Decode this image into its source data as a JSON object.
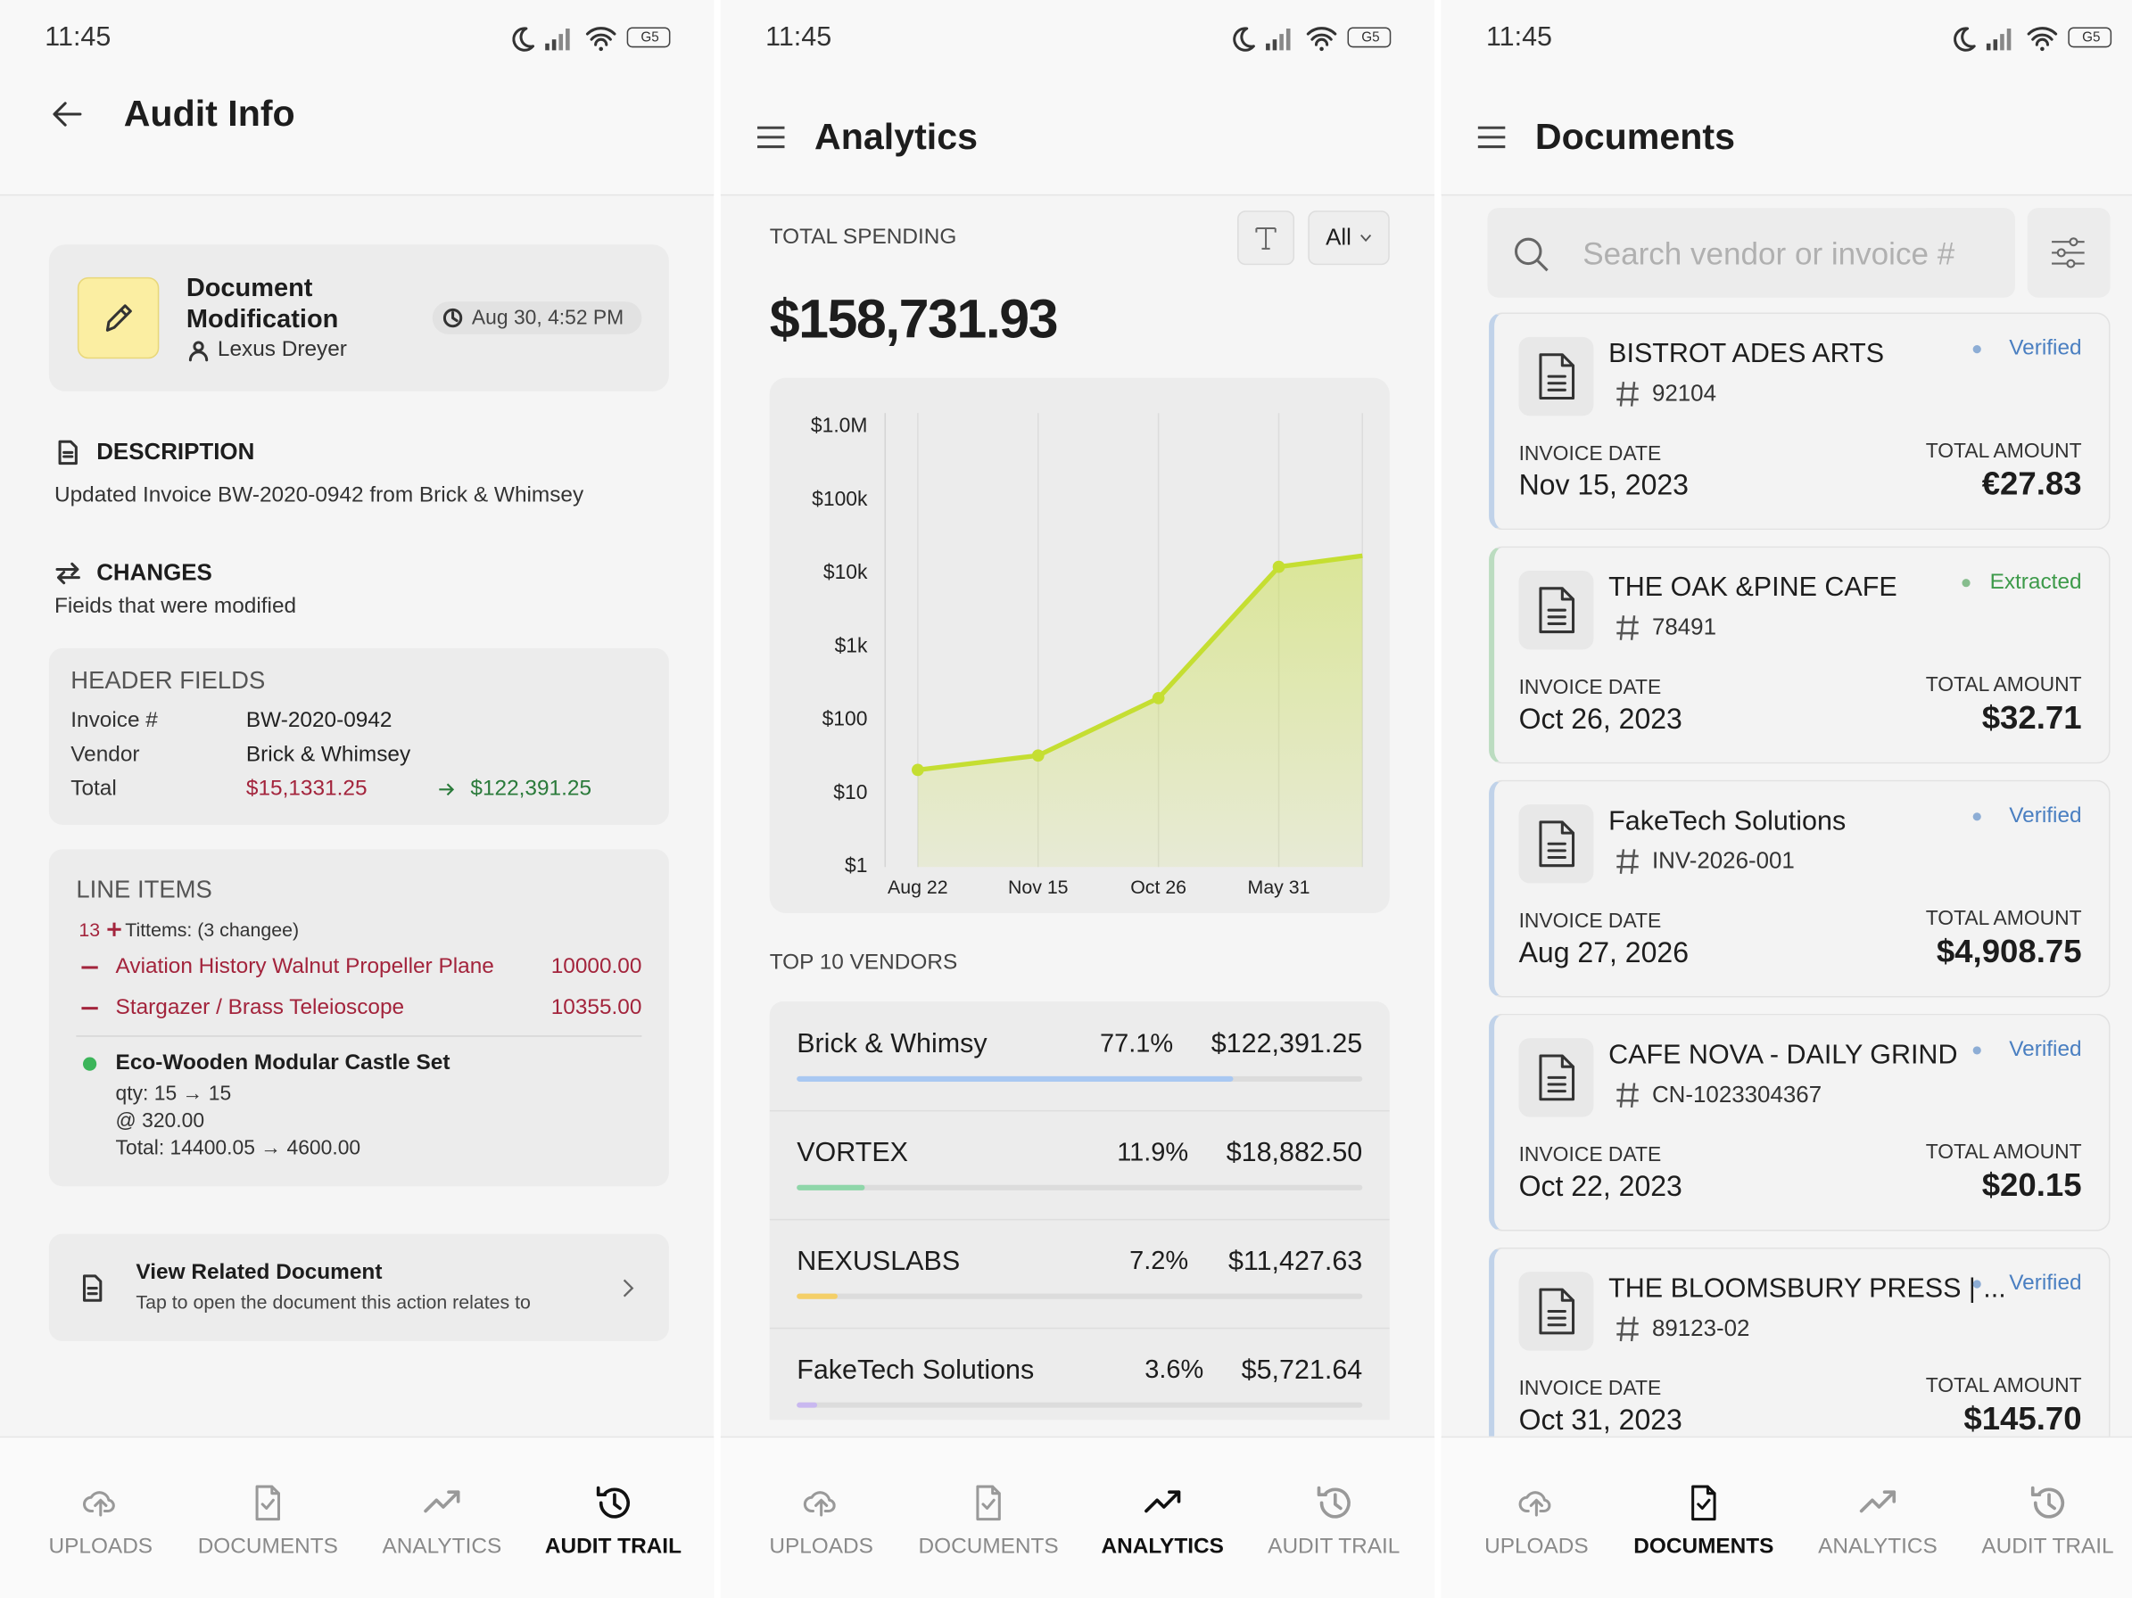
{
  "nav": {
    "items": [
      "UPLOADS",
      "DOCUMENTS",
      "ANALYTICS",
      "AUDIT TRAIL"
    ]
  },
  "audit": {
    "time": "11:45",
    "battery": "G5",
    "active_tab": 3,
    "title": "Audit Info",
    "event": {
      "title": "Document Modification",
      "user": "Lexus Dreyer",
      "timestamp": "Aug 30, 4:52 PM"
    },
    "description": {
      "heading": "DESCRIPTION",
      "text": "Updated Invoice BW-2020-0942 from Brick & Whimsey"
    },
    "changes": {
      "heading": "CHANGES",
      "subtitle": "Fieids that were modified"
    },
    "header_fields": {
      "heading": "HEADER FIELDS",
      "rows": [
        [
          "Invoice #",
          "BW-2020-0942"
        ],
        [
          "Vendor",
          "Brick & Whimsey"
        ],
        [
          "Total",
          "$15,1331.25",
          "$122,391.25"
        ]
      ]
    },
    "line_items": {
      "heading": "LINE ITEMS",
      "count": "13",
      "summary": "Tittems: (3 changee)",
      "removed": [
        [
          "Aviation History Walnut Propeller Plane",
          "10000.00"
        ],
        [
          "Stargazer / Brass Teleioscope",
          "10355.00"
        ]
      ],
      "modified": {
        "name": "Eco-Wooden Modular Castle Set",
        "details": [
          "qty: 15 → 15",
          "@ 320.00",
          "Total: 14400.05 → 4600.00"
        ]
      }
    },
    "related": {
      "title": "View Related Document",
      "subtitle": "Tap to open the document this action relates to"
    }
  },
  "analytics": {
    "time": "11:45",
    "battery": "G5",
    "active_tab": 2,
    "title": "Analytics",
    "total_label": "TOTAL SPENDING",
    "filter": "All",
    "total": "$158,731.93",
    "chart_data": {
      "type": "line",
      "categories": [
        "Aug 22",
        "Nov 15",
        "Oct 26",
        "May 31",
        null
      ],
      "values": [
        21,
        33,
        200,
        12300,
        17400
      ],
      "color": "#c5de32",
      "log_scale": true,
      "grid": true,
      "ylim": [
        1,
        1000000
      ],
      "yticks": [
        {
          "value": 1,
          "label": "$1"
        },
        {
          "value": 10,
          "label": "$10"
        },
        {
          "value": 100,
          "label": "$100"
        },
        {
          "value": 1000,
          "label": "$1k"
        },
        {
          "value": 10000,
          "label": "$10k"
        },
        {
          "value": 100000,
          "label": "$100k"
        },
        {
          "value": 1000000,
          "label": "$1.0M"
        }
      ]
    },
    "vendors": {
      "title": "TOP 10 VENDORS",
      "names": [
        "Brick & Whimsy",
        "VORTEX",
        "NEXUSLABS",
        "FakeTech Solutions"
      ],
      "values": [
        77.1,
        11.9,
        7.2,
        3.6
      ],
      "value_labels": [
        "77.1%",
        "11.9%",
        "7.2%",
        "3.6%"
      ],
      "amounts": [
        "$122,391.25",
        "$18,882.50",
        "$11,427.63",
        "$5,721.64"
      ],
      "colors": [
        "#a9c8f2",
        "#8fd6a9",
        "#f4cf68",
        "#c9b8f0"
      ]
    }
  },
  "documents": {
    "time": "11:45",
    "battery": "G5",
    "active_tab": 1,
    "title": "Documents",
    "search_placeholder": "Search vendor or invoice #",
    "labels": {
      "date": "INVOICE DATE",
      "amount": "TOTAL AMOUNT"
    },
    "items": [
      {
        "vendor": "BISTROT ADES ARTS",
        "number": "92104",
        "status": "Verified",
        "color": "#4a7fc1",
        "date": "Nov 15, 2023",
        "amount": "€27.83"
      },
      {
        "vendor": "THE OAK &PINE CAFE",
        "number": "78491",
        "status": "Extracted",
        "color": "#3d9a4a",
        "date": "Oct 26, 2023",
        "amount": "$32.71"
      },
      {
        "vendor": "FakeTech Solutions",
        "number": "INV-2026-001",
        "status": "Verified",
        "color": "#4a7fc1",
        "date": "Aug 27, 2026",
        "amount": "$4,908.75"
      },
      {
        "vendor": "CAFE NOVA - DAILY GRIND",
        "number": "CN-1023304367",
        "status": "Verified",
        "color": "#4a7fc1",
        "date": "Oct 22, 2023",
        "amount": "$20.15"
      },
      {
        "vendor": "THE BLOOMSBURY PRESS | ...",
        "number": "89123-02",
        "status": "Verified",
        "color": "#4a7fc1",
        "date": "Oct 31, 2023",
        "amount": "$145.70"
      }
    ]
  }
}
